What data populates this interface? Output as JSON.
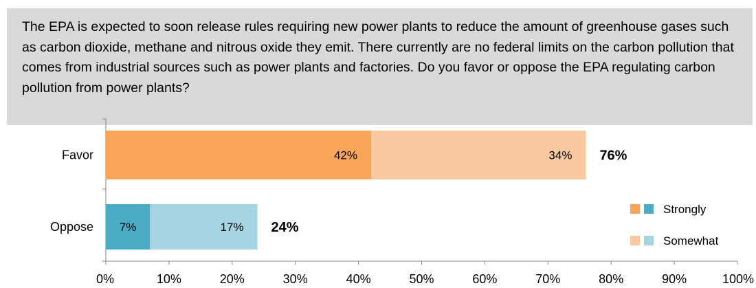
{
  "question": "The EPA is expected to soon release rules requiring new power plants to reduce the amount of greenhouse gases such as carbon dioxide, methane and nitrous oxide they emit. There currently are no federal limits on the carbon pollution that comes from industrial sources such as power plants and factories. Do you favor or oppose the EPA regulating carbon pollution from power plants?",
  "chart_data": {
    "type": "bar",
    "orientation": "horizontal",
    "stacked": true,
    "categories": [
      "Favor",
      "Oppose"
    ],
    "series": [
      {
        "name": "Strongly",
        "values": [
          42,
          7
        ],
        "labels": [
          "42%",
          "7%"
        ],
        "colors": [
          "#f9a65a",
          "#4bacc6"
        ]
      },
      {
        "name": "Somewhat",
        "values": [
          34,
          17
        ],
        "labels": [
          "34%",
          "17%"
        ],
        "colors": [
          "#fbc99f",
          "#a5d5e3"
        ]
      }
    ],
    "totals": [
      76,
      24
    ],
    "total_labels": [
      "76%",
      "24%"
    ],
    "xlim": [
      0,
      100
    ],
    "xticks": [
      0,
      10,
      20,
      30,
      40,
      50,
      60,
      70,
      80,
      90,
      100
    ],
    "xtick_labels": [
      "0%",
      "10%",
      "20%",
      "30%",
      "40%",
      "50%",
      "60%",
      "70%",
      "80%",
      "90%",
      "100%"
    ],
    "grid": false,
    "legend": {
      "position": "right",
      "entries": [
        {
          "label": "Strongly",
          "swatches": [
            "#f9a65a",
            "#4bacc6"
          ]
        },
        {
          "label": "Somewhat",
          "swatches": [
            "#fbc99f",
            "#a5d5e3"
          ]
        }
      ]
    }
  }
}
